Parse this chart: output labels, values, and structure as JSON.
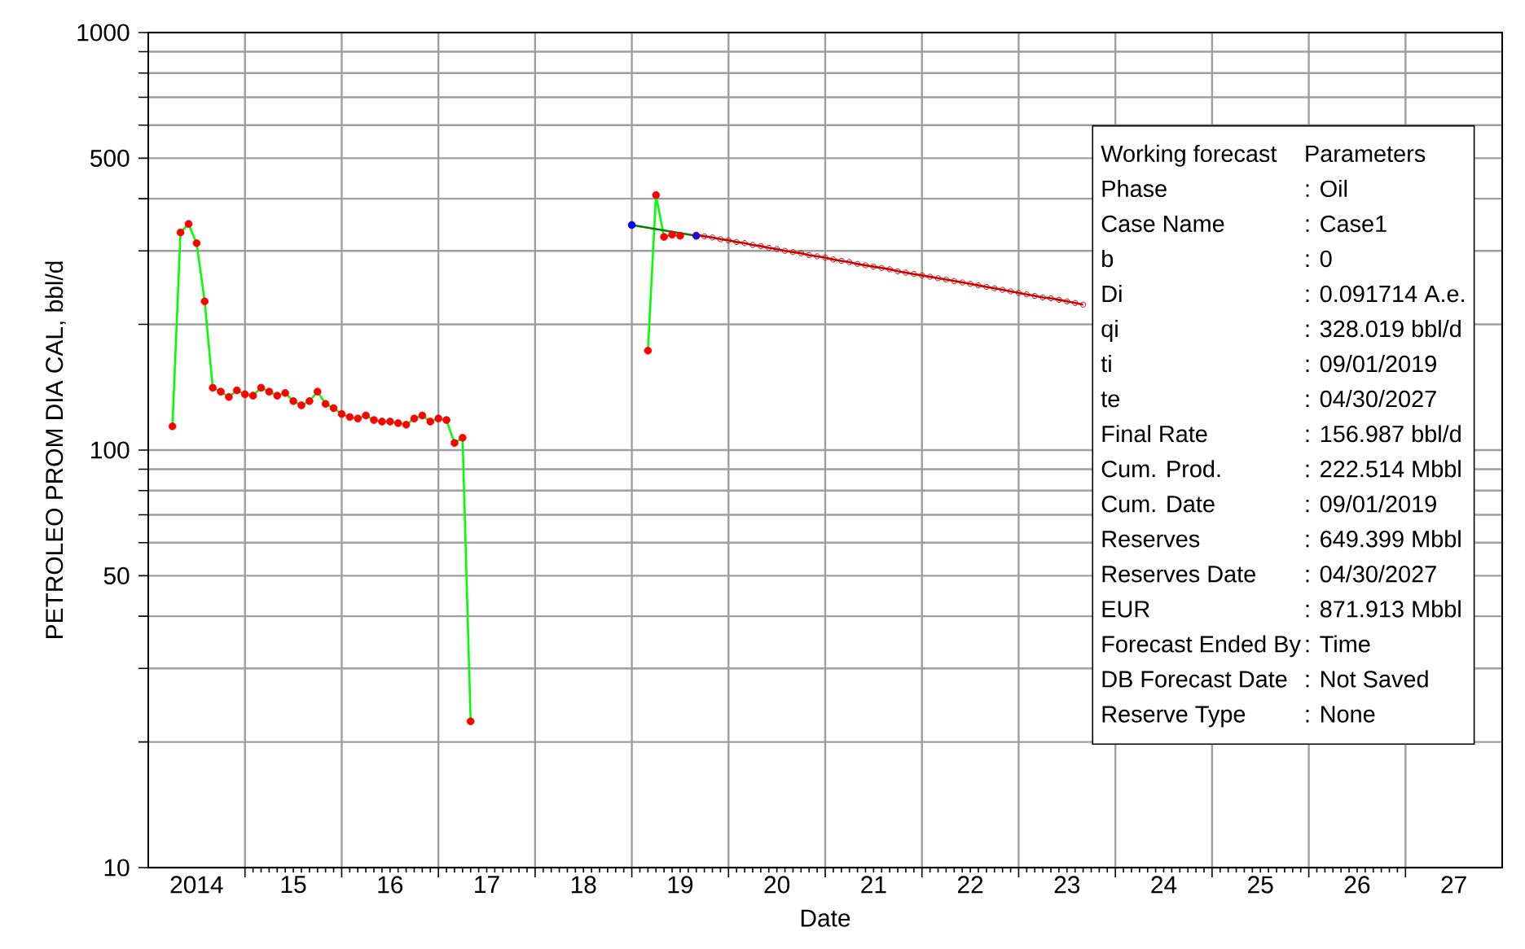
{
  "chart_data": {
    "type": "line",
    "xlabel": "Date",
    "ylabel": "PETROLEO PROM DIA CAL, bbl/d",
    "log": "y",
    "grid": true,
    "xlim": [
      "2014-01",
      "2028-01"
    ],
    "xticks": [
      {
        "value": "2015-01",
        "label": null
      },
      {
        "value": "2016-01",
        "label": null
      },
      {
        "value": "2017-01",
        "label": null
      },
      {
        "value": "2018-01",
        "label": null
      },
      {
        "value": "2019-01",
        "label": null
      },
      {
        "value": "2020-01",
        "label": null
      },
      {
        "value": "2021-01",
        "label": null
      },
      {
        "value": "2022-01",
        "label": null
      },
      {
        "value": "2023-01",
        "label": null
      },
      {
        "value": "2024-01",
        "label": null
      },
      {
        "value": "2025-01",
        "label": null
      },
      {
        "value": "2026-01",
        "label": null
      },
      {
        "value": "2027-01",
        "label": null
      },
      {
        "value": "2014-07",
        "label": "2014"
      },
      {
        "value": "2015-07",
        "label": "15"
      },
      {
        "value": "2016-07",
        "label": "16"
      },
      {
        "value": "2017-07",
        "label": "17"
      },
      {
        "value": "2018-07",
        "label": "18"
      },
      {
        "value": "2019-07",
        "label": "19"
      },
      {
        "value": "2020-07",
        "label": "20"
      },
      {
        "value": "2021-07",
        "label": "21"
      },
      {
        "value": "2022-07",
        "label": "22"
      },
      {
        "value": "2023-07",
        "label": "23"
      },
      {
        "value": "2024-07",
        "label": "24"
      },
      {
        "value": "2025-07",
        "label": "25"
      },
      {
        "value": "2026-07",
        "label": "26"
      },
      {
        "value": "2027-07",
        "label": "27"
      }
    ],
    "ylim": [
      10,
      1000
    ],
    "yticks": [
      10,
      {
        "value": 20,
        "label": null
      },
      {
        "value": 30,
        "label": null
      },
      {
        "value": 40,
        "label": null
      },
      50,
      {
        "value": 60,
        "label": null
      },
      {
        "value": 70,
        "label": null
      },
      {
        "value": 80,
        "label": null
      },
      {
        "value": 90,
        "label": null
      },
      100,
      {
        "value": 200,
        "label": null
      },
      {
        "value": 300,
        "label": null
      },
      {
        "value": 400,
        "label": null
      },
      500,
      {
        "value": 600,
        "label": null
      },
      {
        "value": 700,
        "label": null
      },
      {
        "value": 800,
        "label": null
      },
      {
        "value": 900,
        "label": null
      },
      1000
    ],
    "series": [
      {
        "type": "scatter",
        "marker": "circle",
        "color": "#ff0000",
        "x": [
          "2014-04",
          "2014-05",
          "2014-06",
          "2014-07",
          "2014-08",
          "2014-09",
          "2014-10",
          "2014-11",
          "2014-12",
          "2015-01",
          "2015-02",
          "2015-03",
          "2015-04",
          "2015-05",
          "2015-06",
          "2015-07",
          "2015-08",
          "2015-09",
          "2015-10",
          "2015-11",
          "2015-12",
          "2016-01",
          "2016-02",
          "2016-03",
          "2016-04",
          "2016-05",
          "2016-06",
          "2016-07",
          "2016-08",
          "2016-09",
          "2016-10",
          "2016-11",
          "2016-12",
          "2017-01",
          "2017-02",
          "2017-03",
          "2017-04",
          "2017-05"
        ],
        "values": [
          114,
          332,
          348,
          313,
          227,
          141,
          138,
          134,
          139,
          136,
          135,
          141,
          138,
          135,
          137,
          131,
          128,
          131,
          138,
          129,
          126,
          122,
          120,
          119,
          121,
          118,
          117,
          117,
          116,
          115,
          119,
          121,
          117,
          119,
          118,
          104,
          107,
          22.4
        ]
      },
      {
        "type": "line",
        "marker": "none",
        "color": "#00ff00",
        "x": [
          "2014-04",
          "2014-05",
          "2014-06",
          "2014-07",
          "2014-08",
          "2014-09",
          "2014-10",
          "2014-11",
          "2014-12",
          "2015-01",
          "2015-02",
          "2015-03",
          "2015-04",
          "2015-05",
          "2015-06",
          "2015-07",
          "2015-08",
          "2015-09",
          "2015-10",
          "2015-11",
          "2015-12",
          "2016-01",
          "2016-02",
          "2016-03",
          "2016-04",
          "2016-05",
          "2016-06",
          "2016-07",
          "2016-08",
          "2016-09",
          "2016-10",
          "2016-11",
          "2016-12",
          "2017-01",
          "2017-02",
          "2017-03",
          "2017-04",
          "2017-05"
        ],
        "values": [
          114,
          332,
          348,
          313,
          227,
          141,
          138,
          134,
          139,
          136,
          135,
          141,
          138,
          135,
          137,
          131,
          128,
          131,
          138,
          129,
          126,
          122,
          120,
          119,
          121,
          118,
          117,
          117,
          116,
          115,
          119,
          121,
          117,
          119,
          118,
          104,
          107,
          22.4
        ]
      },
      {
        "type": "scatter",
        "marker": "circle",
        "color": "#ff0000",
        "x": [
          "2019-03",
          "2019-04",
          "2019-05",
          "2019-06",
          "2019-07"
        ],
        "values": [
          173,
          408,
          324,
          328,
          326
        ]
      },
      {
        "type": "line",
        "marker": "none",
        "color": "#00ff00",
        "x": [
          "2019-03",
          "2019-04",
          "2019-05",
          "2019-06",
          "2019-07"
        ],
        "values": [
          173,
          408,
          324,
          328,
          326
        ]
      },
      {
        "type": "scatter",
        "marker": "circle",
        "color": "#0000ff",
        "x": [
          "2019-01",
          "2019-09"
        ],
        "values": [
          346,
          326
        ]
      },
      {
        "type": "line",
        "marker": "none",
        "color": "#008000",
        "x": [
          "2019-01",
          "2019-09"
        ],
        "values": [
          346,
          326
        ]
      },
      {
        "type": "line",
        "marker": "circle",
        "color": "#cc0000",
        "x": [
          "2019-09",
          "2019-10",
          "2019-11",
          "2019-12",
          "2020-01",
          "2020-02",
          "2020-03",
          "2020-04",
          "2020-05",
          "2020-06",
          "2020-07",
          "2020-08",
          "2020-09",
          "2020-10",
          "2020-11",
          "2020-12",
          "2021-01",
          "2021-02",
          "2021-03",
          "2021-04",
          "2021-05",
          "2021-06",
          "2021-07",
          "2021-08",
          "2021-09",
          "2021-10",
          "2021-11",
          "2021-12",
          "2022-01",
          "2022-02",
          "2022-03",
          "2022-04",
          "2022-05",
          "2022-06",
          "2022-07",
          "2022-08",
          "2022-09",
          "2022-10",
          "2022-11",
          "2022-12",
          "2023-01",
          "2023-02",
          "2023-03",
          "2023-04",
          "2023-05",
          "2023-06",
          "2023-07",
          "2023-08",
          "2023-09"
        ],
        "values": [
          328,
          325,
          323,
          320,
          318,
          315,
          313,
          310,
          308,
          305,
          303,
          300,
          298,
          296,
          293,
          291,
          289,
          286,
          284,
          282,
          279,
          277,
          275,
          273,
          271,
          268,
          266,
          264,
          262,
          260,
          258,
          256,
          254,
          252,
          250,
          248,
          246,
          244,
          242,
          240,
          238,
          236,
          234,
          232,
          231,
          229,
          227,
          225,
          223
        ]
      }
    ],
    "annotations": [
      "Working forecast",
      "Parameters",
      "Phase",
      ": Oil",
      "Case Name",
      ": Case1",
      "b",
      ": 0",
      "Di",
      ": 0.091714 A.e.",
      "qi",
      ": 328.019 bbl/d",
      "ti",
      ": 09/01/2019",
      "te",
      ": 04/30/2027",
      "Final Rate",
      ": 156.987 bbl/d",
      "Cum. Prod.",
      ": 222.514 Mbbl",
      "Cum. Date",
      ": 09/01/2019",
      "Reserves",
      ": 649.399 Mbbl",
      "Reserves Date",
      ": 04/30/2027",
      "EUR",
      ": 871.913 Mbbl",
      "Forecast Ended By",
      ": Time",
      "DB Forecast Date",
      ": Not Saved",
      "Reserve Type",
      ": None"
    ]
  }
}
